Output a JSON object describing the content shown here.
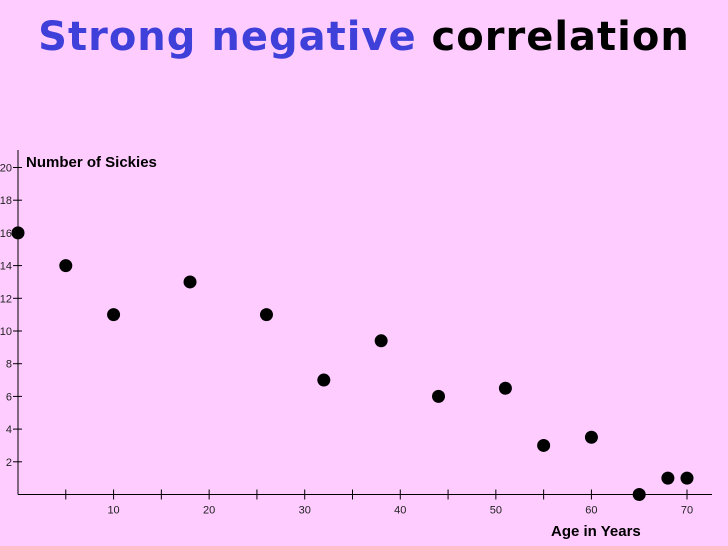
{
  "title": {
    "part1": "Strong negative",
    "part2": "correlation"
  },
  "colors": {
    "background": "#ffccff",
    "title_accent": "#3f3fd9",
    "title_main": "#000000",
    "points": "#000000",
    "axis": "#000000"
  },
  "chart_data": {
    "type": "scatter",
    "title": "Strong negative correlation",
    "xlabel": "Age in Years",
    "ylabel": "Number of Sickies",
    "xlim": [
      0,
      72
    ],
    "ylim": [
      0,
      20
    ],
    "grid": false,
    "x_tick_labels": [
      "10",
      "20",
      "30",
      "40",
      "50",
      "60",
      "70"
    ],
    "y_tick_labels": [
      "2",
      "4",
      "6",
      "8",
      "10",
      "12",
      "14",
      "16",
      "18",
      "20"
    ],
    "x_tick_values": [
      10,
      20,
      30,
      40,
      50,
      60,
      70
    ],
    "y_tick_values": [
      2,
      4,
      6,
      8,
      10,
      12,
      14,
      16,
      18,
      20
    ],
    "x_minor_ticks": [
      5,
      10,
      15,
      20,
      25,
      30,
      35,
      40,
      45,
      50,
      55,
      60,
      65,
      70
    ],
    "points": [
      {
        "x": 0,
        "y": 16
      },
      {
        "x": 5,
        "y": 14
      },
      {
        "x": 10,
        "y": 11
      },
      {
        "x": 18,
        "y": 13
      },
      {
        "x": 26,
        "y": 11
      },
      {
        "x": 32,
        "y": 7
      },
      {
        "x": 38,
        "y": 9.4
      },
      {
        "x": 44,
        "y": 6
      },
      {
        "x": 51,
        "y": 6.5
      },
      {
        "x": 55,
        "y": 3
      },
      {
        "x": 60,
        "y": 3.5
      },
      {
        "x": 65,
        "y": 0
      },
      {
        "x": 68,
        "y": 1
      },
      {
        "x": 70,
        "y": 1
      }
    ]
  }
}
